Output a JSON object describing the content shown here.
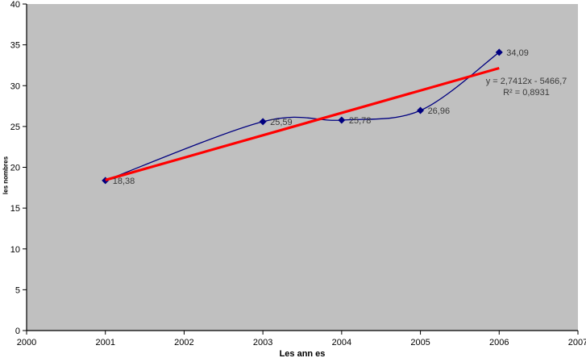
{
  "chart_data": {
    "type": "line",
    "title": "",
    "xlabel": "Les ann es",
    "ylabel": "les nombres",
    "xlim": [
      2000,
      2007
    ],
    "ylim": [
      0,
      40
    ],
    "x_ticks": [
      2000,
      2001,
      2002,
      2003,
      2004,
      2005,
      2006,
      2007
    ],
    "y_ticks": [
      0,
      5,
      10,
      15,
      20,
      25,
      30,
      35,
      40
    ],
    "grid": false,
    "legend": "none",
    "plot_bg_color": "#c0c0c0",
    "axis_color": "#000000",
    "series": [
      {
        "color": "#000080",
        "marker": "diamond",
        "smooth": true,
        "points": [
          {
            "x": 2001,
            "y": 18.38,
            "label": "18,38"
          },
          {
            "x": 2003,
            "y": 25.59,
            "label": "25,59"
          },
          {
            "x": 2004,
            "y": 25.78,
            "label": "25,78"
          },
          {
            "x": 2005,
            "y": 26.96,
            "label": "26,96"
          },
          {
            "x": 2006,
            "y": 34.09,
            "label": "34,09"
          }
        ]
      }
    ],
    "trendline": {
      "color": "#ff0000",
      "slope": 2.7412,
      "intercept": -5466.7,
      "x_start": 2001,
      "x_end": 2006,
      "equation_label": "y = 2,7412x - 5466,7",
      "r_squared_label": "R² = 0,8931"
    }
  }
}
